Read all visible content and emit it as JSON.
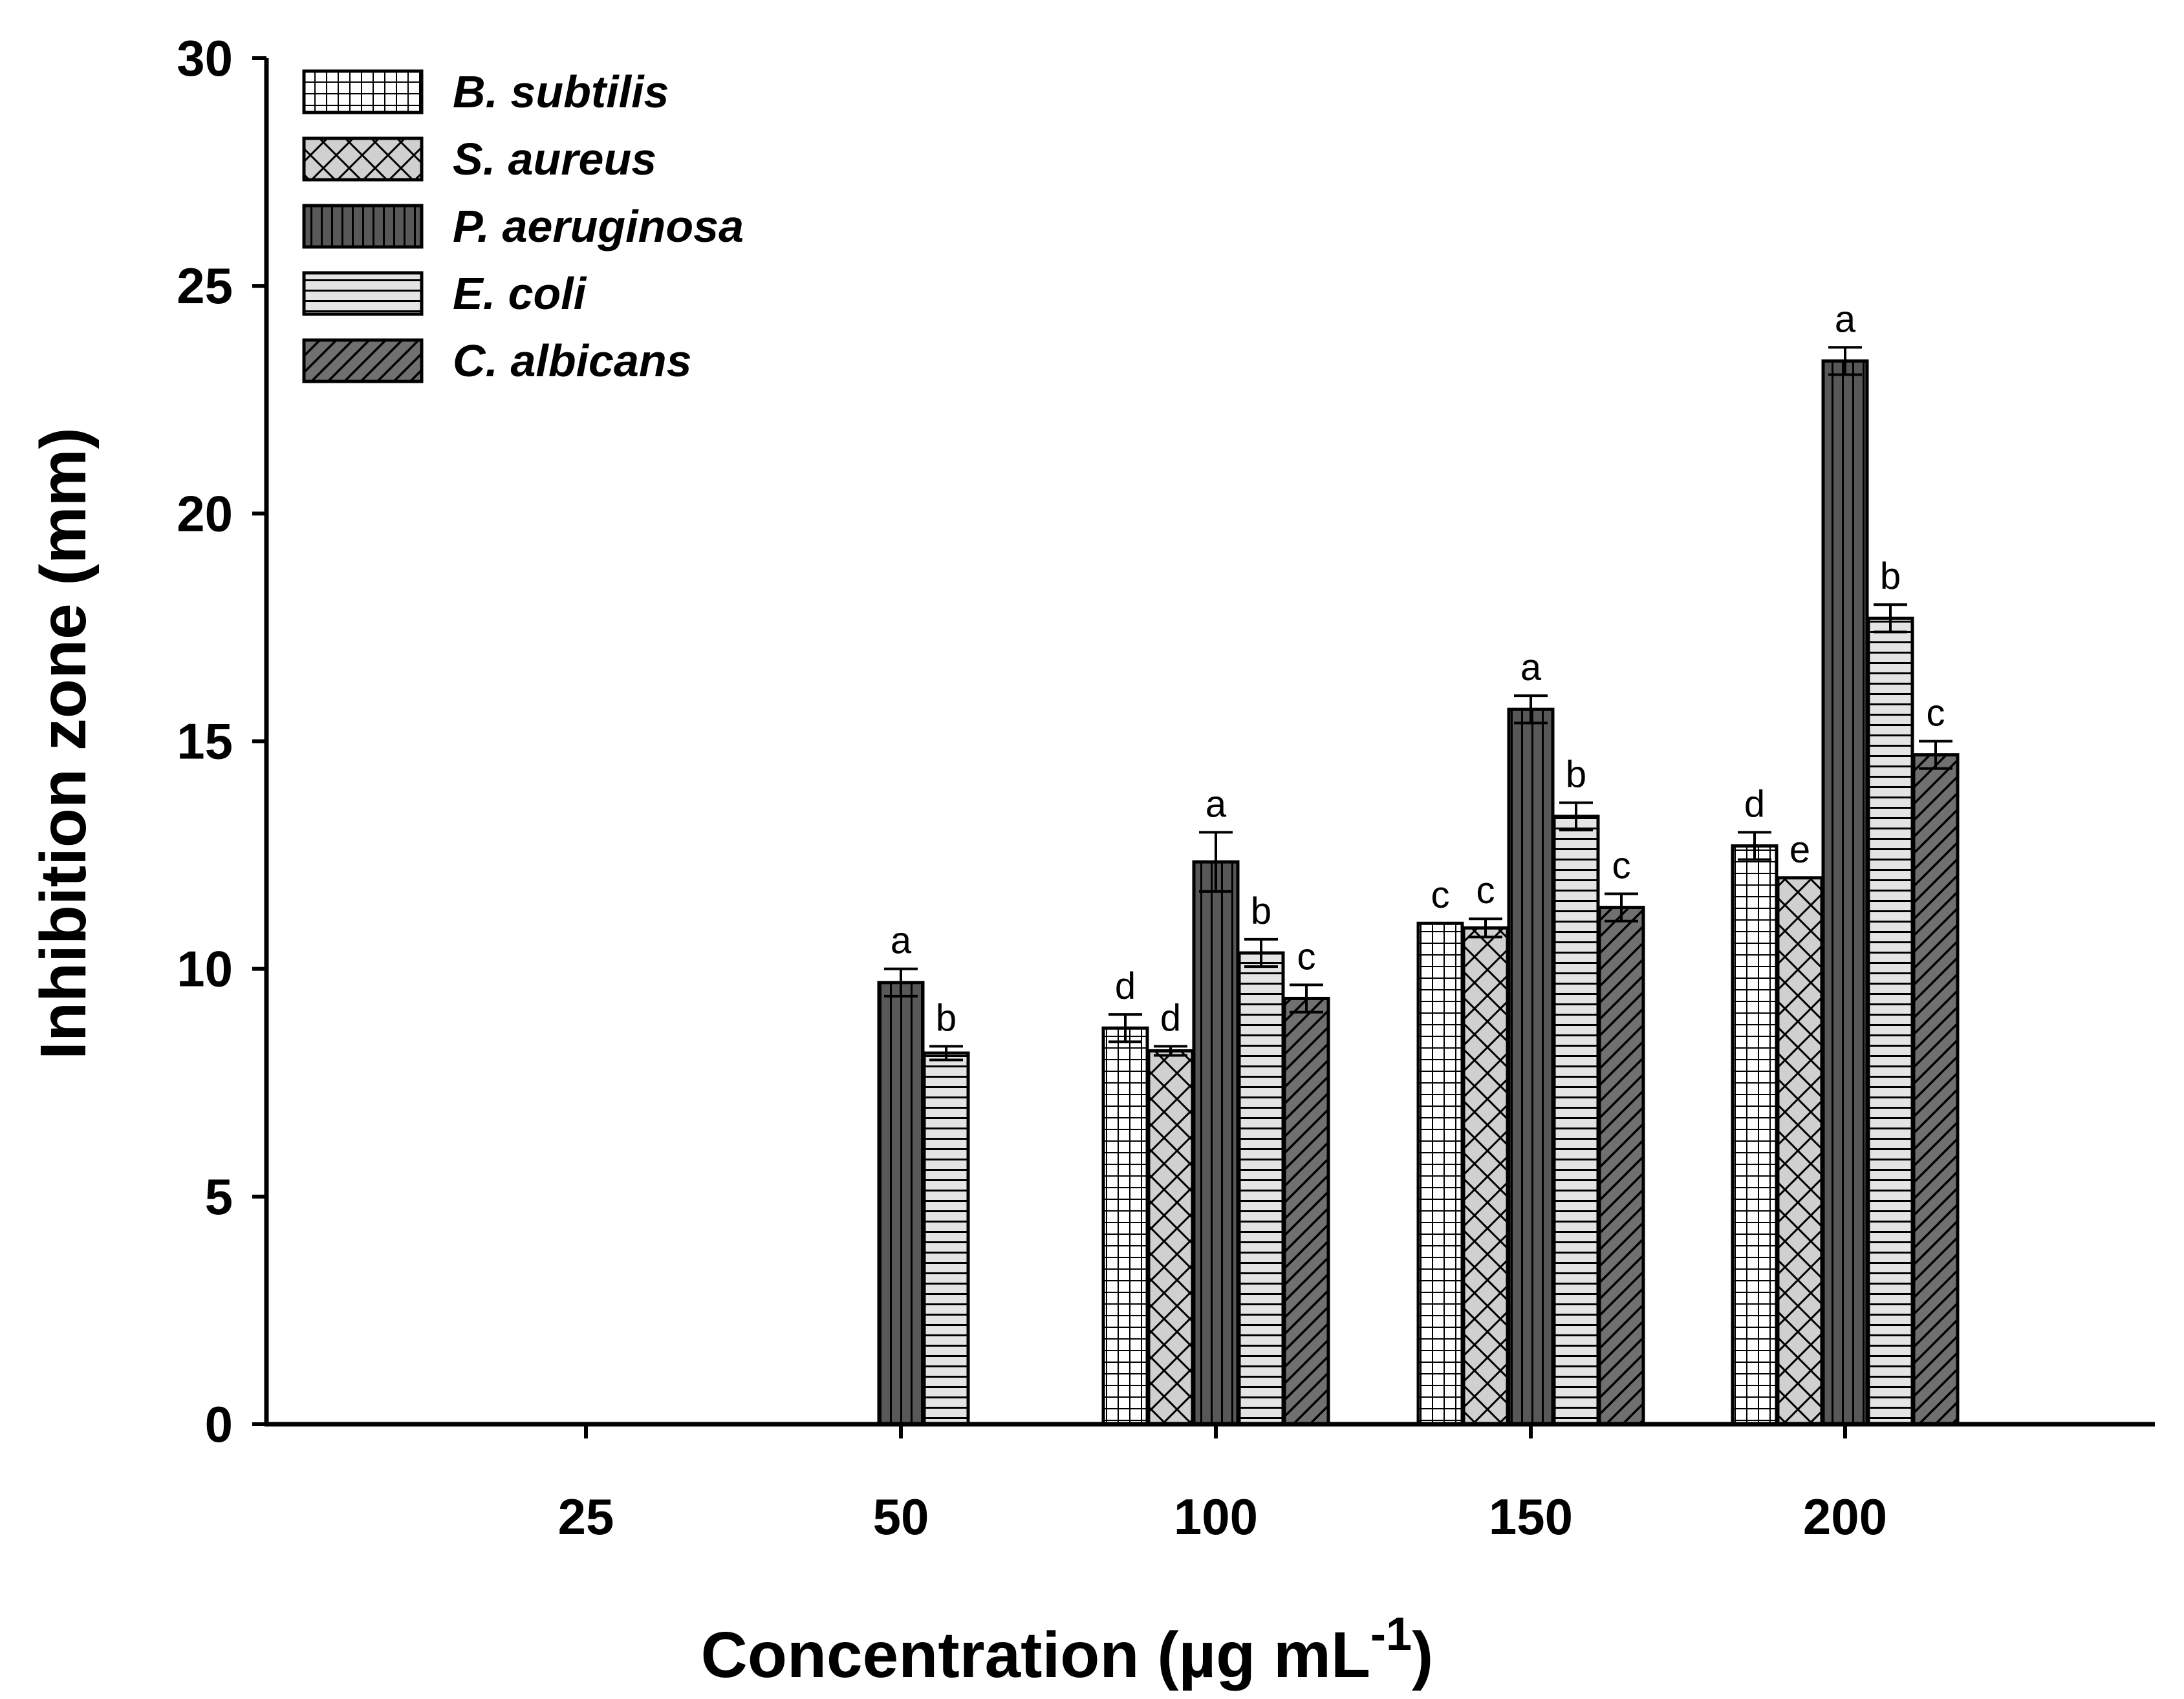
{
  "chart_data": {
    "type": "bar",
    "title": "",
    "xlabel": "Concentration (µg mL",
    "xlabel_sup": "-1",
    "xlabel_close": ")",
    "ylabel": "Inhibition zone (mm)",
    "ylim": [
      0,
      30
    ],
    "yticks": [
      0,
      5,
      10,
      15,
      20,
      25,
      30
    ],
    "categories": [
      "25",
      "50",
      "100",
      "150",
      "200"
    ],
    "grid": false,
    "legend_position": "top-left",
    "series": [
      {
        "name": "B. subtilis",
        "pattern": "grid",
        "color": "#ffffff",
        "values": [
          0,
          0,
          8.7,
          11.0,
          12.7
        ],
        "errors": [
          0,
          0,
          0.3,
          0,
          0.3
        ],
        "labels": [
          "",
          "",
          "d",
          "c",
          "d"
        ]
      },
      {
        "name": "S. aureus",
        "pattern": "crosshatch",
        "color": "#d0d0d0",
        "values": [
          0,
          0,
          8.2,
          10.9,
          12.0
        ],
        "errors": [
          0,
          0,
          0.1,
          0.2,
          0
        ],
        "labels": [
          "",
          "",
          "d",
          "c",
          "e"
        ]
      },
      {
        "name": "P. aeruginosa",
        "pattern": "vertical",
        "color": "#585858",
        "values": [
          0,
          9.7,
          12.35,
          15.7,
          23.35
        ],
        "errors": [
          0,
          0.3,
          0.65,
          0.3,
          0.3
        ],
        "labels": [
          "",
          "a",
          "a",
          "a",
          "a"
        ]
      },
      {
        "name": "E. coli",
        "pattern": "horizontal",
        "color": "#e4e4e4",
        "values": [
          0,
          8.15,
          10.35,
          13.35,
          17.7
        ],
        "errors": [
          0,
          0.15,
          0.3,
          0.3,
          0.3
        ],
        "labels": [
          "",
          "b",
          "b",
          "b",
          "b"
        ]
      },
      {
        "name": "C. albicans",
        "pattern": "diagonal",
        "color": "#707070",
        "values": [
          0,
          0,
          9.35,
          11.35,
          14.7
        ],
        "errors": [
          0,
          0,
          0.3,
          0.3,
          0.3
        ],
        "labels": [
          "",
          "",
          "c",
          "c",
          "c"
        ]
      }
    ]
  }
}
